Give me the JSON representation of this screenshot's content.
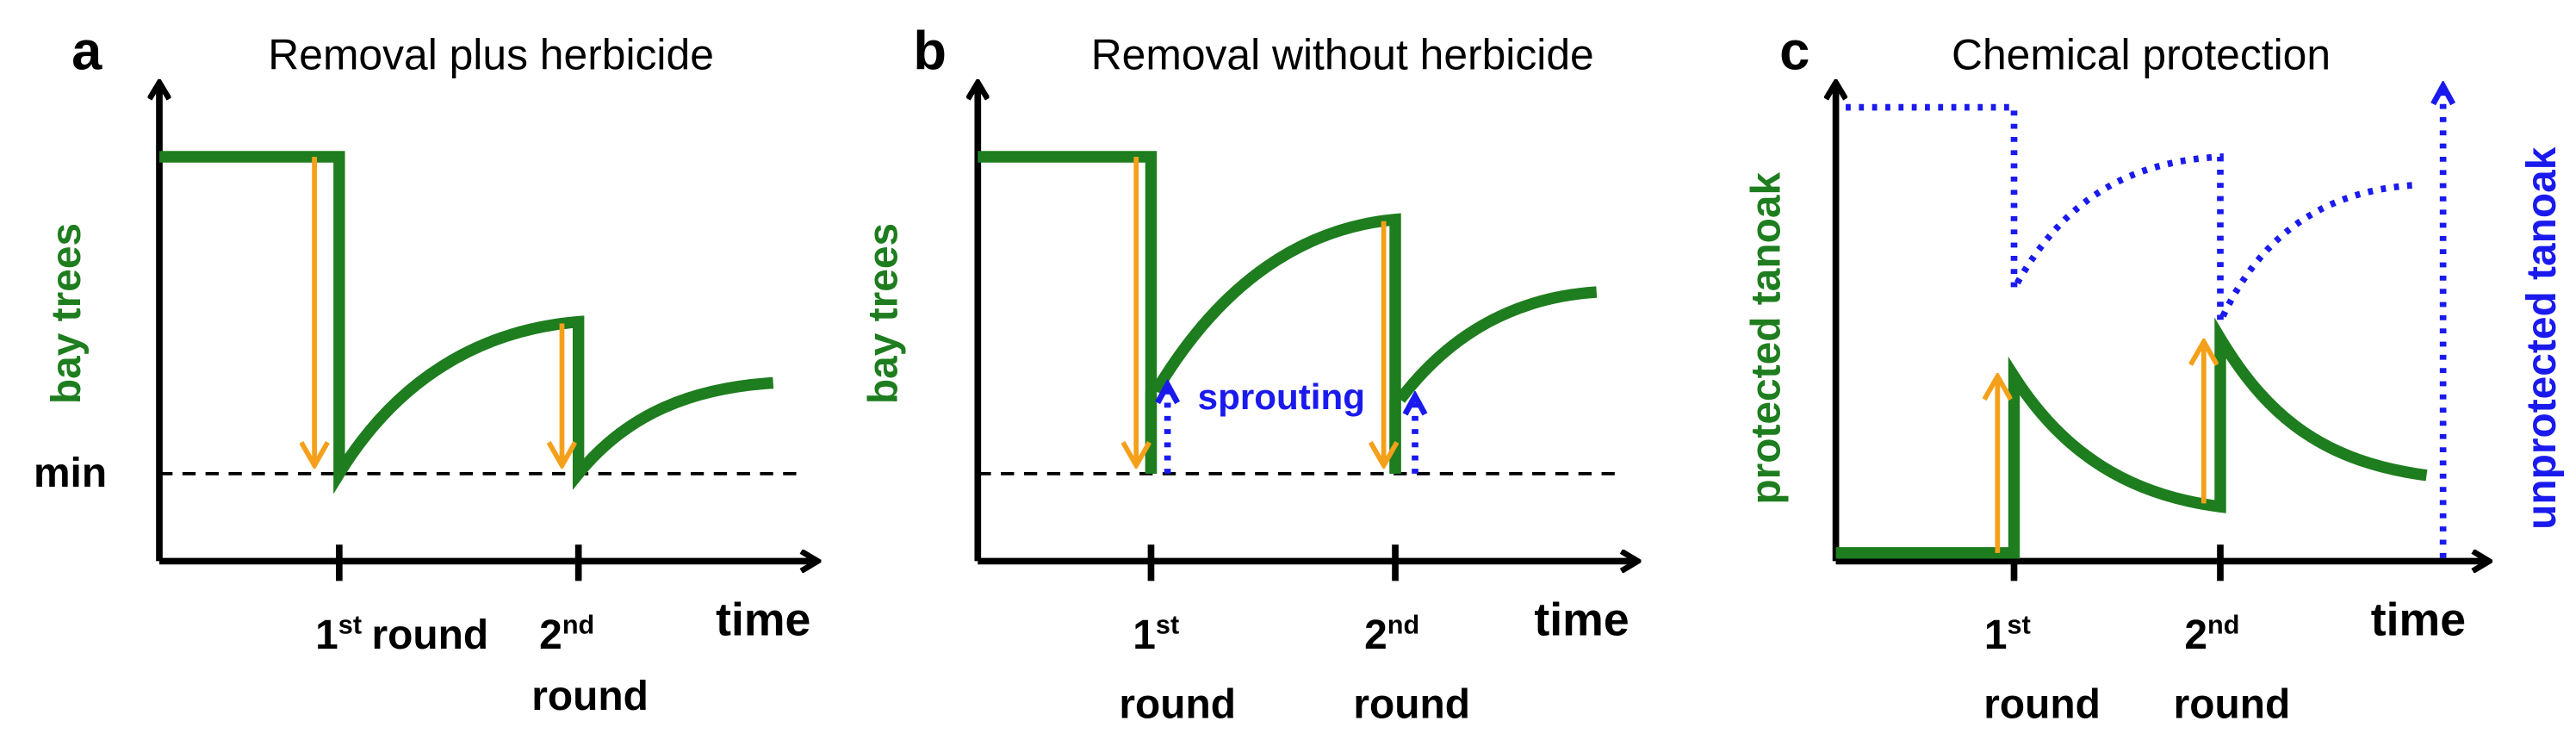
{
  "panels": [
    {
      "label": "a",
      "title": "Removal plus herbicide",
      "y_label": "bay trees",
      "min_label": "min",
      "x_label": "time",
      "rounds": [
        {
          "number": "1",
          "suffix": "st",
          "word": "round"
        },
        {
          "number": "2",
          "suffix": "nd",
          "word": "round"
        }
      ]
    },
    {
      "label": "b",
      "title": "Removal without herbicide",
      "y_label": "bay trees",
      "x_label": "time",
      "annotation": "sprouting",
      "rounds": [
        {
          "number": "1",
          "suffix": "st",
          "word": "round"
        },
        {
          "number": "2",
          "suffix": "nd",
          "word": "round"
        }
      ]
    },
    {
      "label": "c",
      "title": "Chemical protection",
      "y_label": "protected tanoak",
      "y2_label": "unprotected tanoak",
      "x_label": "time",
      "rounds": [
        {
          "number": "1",
          "suffix": "st",
          "word": "round"
        },
        {
          "number": "2",
          "suffix": "nd",
          "word": "round"
        }
      ]
    }
  ]
}
